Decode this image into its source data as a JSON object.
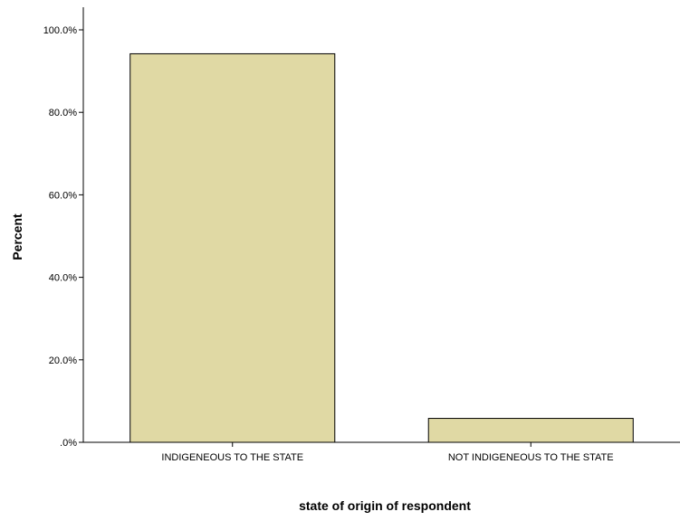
{
  "chart_data": {
    "type": "bar",
    "categories": [
      "INDIGENEOUS TO THE STATE",
      "NOT INDIGENEOUS TO THE STATE"
    ],
    "values": [
      94.2,
      5.8
    ],
    "title": "",
    "xlabel": "state of origin of respondent",
    "ylabel": "Percent",
    "ylim": [
      0,
      100
    ],
    "yticks": [
      0,
      20,
      40,
      60,
      80,
      100
    ],
    "ytick_labels": [
      ".0%",
      "20.0%",
      "40.0%",
      "60.0%",
      "80.0%",
      "100.0%"
    ],
    "grid": false,
    "legend": "none",
    "bar_color": "#e0d9a4",
    "bar_edge_color": "#000000"
  }
}
